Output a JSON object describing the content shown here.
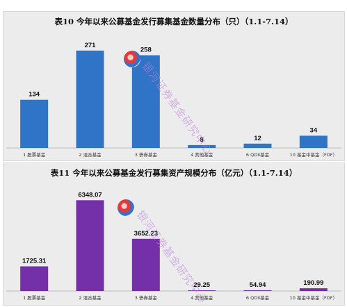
{
  "chart_data": [
    {
      "type": "bar",
      "title": "表10  今年以来公募基金发行募集基金数量分布（只）（1.1-7.14）",
      "categories": [
        "1 股票基金",
        "2 混合基金",
        "3 债券基金",
        "4 其他基金",
        "6 QDII基金",
        "10 基金中基金（FOF）"
      ],
      "values": [
        134,
        271,
        258,
        8,
        12,
        34
      ],
      "value_labels": [
        "134",
        "271",
        "258",
        "8",
        "12",
        "34"
      ],
      "ylim": [
        0,
        290
      ],
      "color": "#2f74c6",
      "grid": false,
      "legend": "none"
    },
    {
      "type": "bar",
      "title": "表11  今年以来公募基金发行募集资产规模分布（亿元）（1.1-7.14）",
      "categories": [
        "1 股票基金",
        "2 混合基金",
        "3 债券基金",
        "4 其他基金",
        "6 QDII基金",
        "10 基金中基金（FOF）"
      ],
      "values": [
        1725.31,
        6348.07,
        3652.23,
        29.25,
        54.94,
        190.99
      ],
      "value_labels": [
        "1725.31",
        "6348.07",
        "3652.23",
        "29.25",
        "54.94",
        "190.99"
      ],
      "ylim": [
        0,
        6800
      ],
      "color": "#7430a8",
      "grid": false,
      "legend": "none"
    }
  ],
  "watermark": {
    "text": "银河证券基金研究中心",
    "color": "#be82dc"
  },
  "logo": {
    "icon": "galaxy-logo-icon",
    "colors": [
      "#e03a3a",
      "#3a6fc4"
    ]
  }
}
